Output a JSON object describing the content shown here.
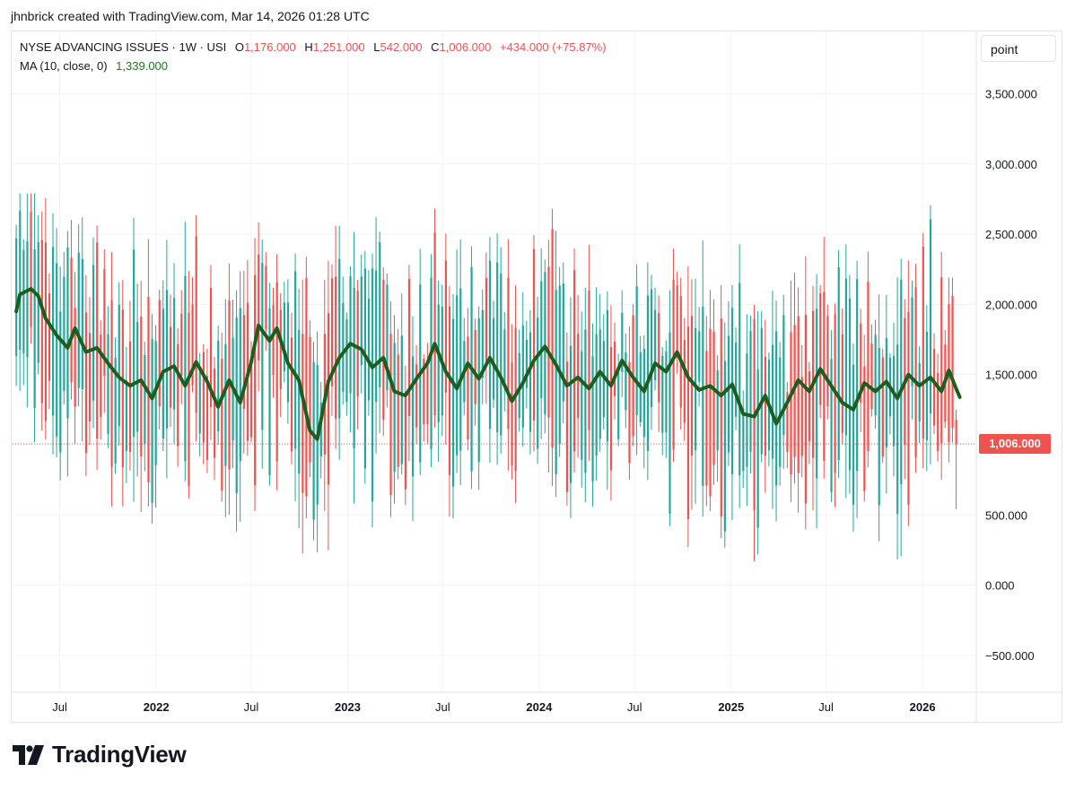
{
  "credit": "jhnbrick created with TradingView.com, Mar 14, 2026 01:28 UTC",
  "legend": {
    "symbol": "NYSE ADVANCING ISSUES · 1W · USI",
    "o_label": "O",
    "o_value": "1,176.000",
    "h_label": "H",
    "h_value": "1,251.000",
    "l_label": "L",
    "l_value": "542.000",
    "c_label": "C",
    "c_value": "1,006.000",
    "change": "+434.000 (+75.87%)",
    "ma_label": "MA (10, close, 0)",
    "ma_value": "1,339.000"
  },
  "scale_button": "point",
  "last_price_label": "1,006.000",
  "brand": "TradingView",
  "colors": {
    "up": "#26a69a",
    "down": "#ef5350",
    "ma": "#1b5e20",
    "grid": "#f0f3fa",
    "axis_text": "#131722"
  },
  "chart_data": {
    "type": "candlestick",
    "interval": "1W",
    "ylim": [
      -750,
      3950
    ],
    "y_ticks": [
      -500,
      0,
      500,
      1000,
      1500,
      2000,
      2500,
      3000,
      3500
    ],
    "y_tick_labels": [
      "−500.000",
      "0.000",
      "500.000",
      "1,000.000",
      "1,500.000",
      "2,000.000",
      "2,500.000",
      "3,000.000",
      "3,500.000"
    ],
    "x_start": "2021-04-02",
    "x_end": "2026-04-10",
    "x_ticks": [
      {
        "label": "Jul",
        "date": "2021-07-01",
        "bold": false
      },
      {
        "label": "2022",
        "date": "2022-01-01",
        "bold": true
      },
      {
        "label": "Jul",
        "date": "2022-07-01",
        "bold": false
      },
      {
        "label": "2023",
        "date": "2023-01-01",
        "bold": true
      },
      {
        "label": "Jul",
        "date": "2023-07-01",
        "bold": false
      },
      {
        "label": "2024",
        "date": "2024-01-01",
        "bold": true
      },
      {
        "label": "Jul",
        "date": "2024-07-01",
        "bold": false
      },
      {
        "label": "2025",
        "date": "2025-01-01",
        "bold": true
      },
      {
        "label": "Jul",
        "date": "2025-07-01",
        "bold": false
      },
      {
        "label": "2026",
        "date": "2026-01-01",
        "bold": true
      }
    ],
    "last_close": 1006,
    "last_bar": {
      "open": 1176,
      "high": 1251,
      "low": 542,
      "close": 1006
    },
    "weeks_shown": 257,
    "first_week": "2021-04-09",
    "ma_period": 10,
    "ma_last": 1339,
    "ma_approx_path": [
      [
        "2021-04-09",
        1950
      ],
      [
        "2021-04-16",
        2070
      ],
      [
        "2021-05-07",
        2110
      ],
      [
        "2021-05-21",
        2060
      ],
      [
        "2021-06-04",
        1900
      ],
      [
        "2021-06-25",
        1780
      ],
      [
        "2021-07-16",
        1690
      ],
      [
        "2021-07-30",
        1830
      ],
      [
        "2021-08-20",
        1660
      ],
      [
        "2021-09-10",
        1690
      ],
      [
        "2021-10-01",
        1580
      ],
      [
        "2021-10-22",
        1480
      ],
      [
        "2021-11-12",
        1420
      ],
      [
        "2021-12-03",
        1460
      ],
      [
        "2021-12-24",
        1330
      ],
      [
        "2022-01-14",
        1520
      ],
      [
        "2022-02-04",
        1560
      ],
      [
        "2022-02-25",
        1420
      ],
      [
        "2022-03-18",
        1590
      ],
      [
        "2022-04-08",
        1450
      ],
      [
        "2022-04-29",
        1270
      ],
      [
        "2022-05-20",
        1460
      ],
      [
        "2022-06-10",
        1300
      ],
      [
        "2022-07-01",
        1590
      ],
      [
        "2022-07-15",
        1850
      ],
      [
        "2022-08-05",
        1740
      ],
      [
        "2022-08-19",
        1830
      ],
      [
        "2022-09-09",
        1580
      ],
      [
        "2022-09-30",
        1460
      ],
      [
        "2022-10-21",
        1100
      ],
      [
        "2022-11-04",
        1040
      ],
      [
        "2022-11-25",
        1450
      ],
      [
        "2022-12-16",
        1620
      ],
      [
        "2023-01-06",
        1720
      ],
      [
        "2023-01-27",
        1680
      ],
      [
        "2023-02-17",
        1550
      ],
      [
        "2023-03-10",
        1620
      ],
      [
        "2023-03-31",
        1380
      ],
      [
        "2023-04-21",
        1350
      ],
      [
        "2023-05-12",
        1470
      ],
      [
        "2023-06-02",
        1580
      ],
      [
        "2023-06-16",
        1720
      ],
      [
        "2023-07-07",
        1520
      ],
      [
        "2023-07-28",
        1400
      ],
      [
        "2023-08-18",
        1580
      ],
      [
        "2023-09-08",
        1470
      ],
      [
        "2023-09-29",
        1620
      ],
      [
        "2023-10-20",
        1480
      ],
      [
        "2023-11-10",
        1310
      ],
      [
        "2023-12-01",
        1440
      ],
      [
        "2023-12-22",
        1600
      ],
      [
        "2024-01-12",
        1700
      ],
      [
        "2024-02-02",
        1570
      ],
      [
        "2024-02-23",
        1420
      ],
      [
        "2024-03-15",
        1480
      ],
      [
        "2024-04-05",
        1400
      ],
      [
        "2024-04-26",
        1520
      ],
      [
        "2024-05-17",
        1420
      ],
      [
        "2024-06-07",
        1600
      ],
      [
        "2024-06-28",
        1480
      ],
      [
        "2024-07-19",
        1380
      ],
      [
        "2024-08-09",
        1580
      ],
      [
        "2024-08-30",
        1520
      ],
      [
        "2024-09-20",
        1660
      ],
      [
        "2024-10-11",
        1480
      ],
      [
        "2024-11-01",
        1390
      ],
      [
        "2024-11-22",
        1420
      ],
      [
        "2024-12-13",
        1350
      ],
      [
        "2025-01-03",
        1430
      ],
      [
        "2025-01-24",
        1220
      ],
      [
        "2025-02-14",
        1200
      ],
      [
        "2025-03-07",
        1350
      ],
      [
        "2025-03-28",
        1150
      ],
      [
        "2025-04-18",
        1300
      ],
      [
        "2025-05-09",
        1460
      ],
      [
        "2025-05-30",
        1380
      ],
      [
        "2025-06-20",
        1540
      ],
      [
        "2025-07-11",
        1420
      ],
      [
        "2025-08-01",
        1300
      ],
      [
        "2025-08-22",
        1250
      ],
      [
        "2025-09-12",
        1440
      ],
      [
        "2025-10-03",
        1380
      ],
      [
        "2025-10-24",
        1450
      ],
      [
        "2025-11-14",
        1330
      ],
      [
        "2025-12-05",
        1500
      ],
      [
        "2025-12-26",
        1420
      ],
      [
        "2026-01-16",
        1480
      ],
      [
        "2026-02-06",
        1380
      ],
      [
        "2026-02-20",
        1530
      ],
      [
        "2026-03-06",
        1400
      ],
      [
        "2026-03-13",
        1339
      ]
    ]
  }
}
